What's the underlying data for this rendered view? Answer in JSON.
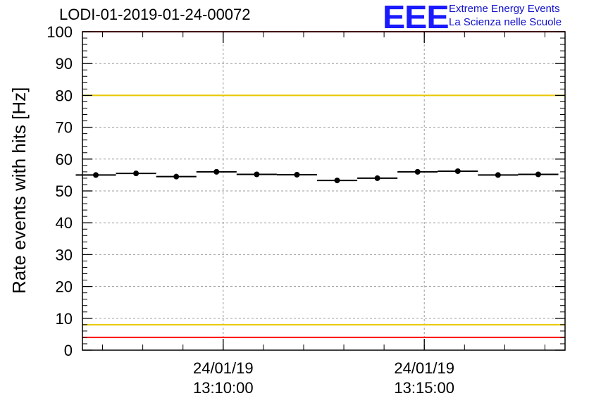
{
  "header": {
    "title": "LODI-01-2019-01-24-00072",
    "logo_mark": "EEE",
    "logo_line1": "Extreme Energy Events",
    "logo_line2": "La Scienza nelle Scuole"
  },
  "colors": {
    "logo": "#1a1aff",
    "red_line": "#ff0000",
    "yellow_line": "#e8c800",
    "points": "#000000",
    "grid": "#9a9a9a"
  },
  "chart_data": {
    "type": "scatter",
    "title": "LODI-01-2019-01-24-00072",
    "xlabel": "",
    "ylabel": "Rate events with hits [Hz]",
    "ylim": [
      0,
      100
    ],
    "yticks": [
      0,
      10,
      20,
      30,
      40,
      50,
      60,
      70,
      80,
      90,
      100
    ],
    "xlim": [
      "24/01/19 13:06:30",
      "24/01/19 13:18:30"
    ],
    "xticks": [
      {
        "date": "24/01/19",
        "time": "13:10:00"
      },
      {
        "date": "24/01/19",
        "time": "13:15:00"
      }
    ],
    "grid": true,
    "series": [
      {
        "x": [
          "13:06:50",
          "13:07:50",
          "13:08:50",
          "13:09:50",
          "13:10:50",
          "13:11:50",
          "13:12:50",
          "13:13:50",
          "13:14:50",
          "13:15:50",
          "13:16:50",
          "13:17:50"
        ],
        "y": [
          55.0,
          55.5,
          54.5,
          56.0,
          55.2,
          55.1,
          53.3,
          54.0,
          56.0,
          56.2,
          55.0,
          55.2
        ],
        "bin_width_s": 60
      }
    ],
    "reference_lines": [
      {
        "y": 100,
        "color": "red"
      },
      {
        "y": 80,
        "color": "yellow"
      },
      {
        "y": 8,
        "color": "yellow"
      },
      {
        "y": 4,
        "color": "red"
      }
    ]
  }
}
